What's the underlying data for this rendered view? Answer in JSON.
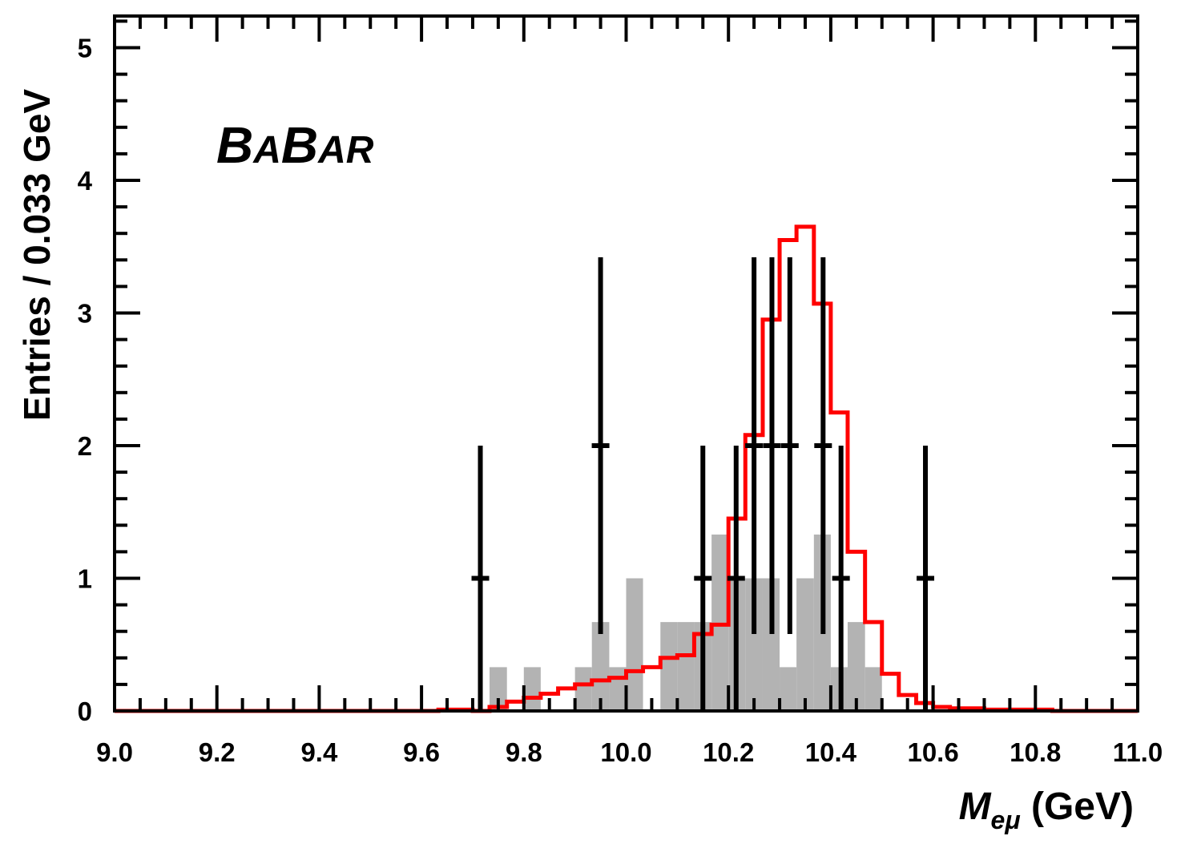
{
  "chart_data": {
    "type": "histogram",
    "experiment_label_parts": [
      "B",
      "A",
      "B",
      "AR"
    ],
    "xlabel_parts": [
      "M",
      "eμ",
      " (GeV)"
    ],
    "ylabel": "Entries / 0.033 GeV",
    "xlim": [
      9.0,
      11.0
    ],
    "ylim": [
      0,
      5.25
    ],
    "x_ticks": [
      "9.0",
      "9.2",
      "9.4",
      "9.6",
      "9.8",
      "10.0",
      "10.2",
      "10.4",
      "10.6",
      "10.8",
      "11.0"
    ],
    "y_ticks": [
      "0",
      "1",
      "2",
      "3",
      "4",
      "5"
    ],
    "colors": {
      "signal": "#ff0000",
      "background": "#b3b3b3",
      "data": "#000000"
    },
    "series": [
      {
        "kind": "data_points",
        "points": [
          {
            "x": 9.715,
            "y": 1,
            "err": 1
          },
          {
            "x": 9.95,
            "y": 2,
            "err": 1.42
          },
          {
            "x": 10.15,
            "y": 1,
            "err": 1
          },
          {
            "x": 10.215,
            "y": 1,
            "err": 1
          },
          {
            "x": 10.25,
            "y": 2,
            "err": 1.42
          },
          {
            "x": 10.285,
            "y": 2,
            "err": 1.42
          },
          {
            "x": 10.32,
            "y": 2,
            "err": 1.42
          },
          {
            "x": 10.385,
            "y": 2,
            "err": 1.42
          },
          {
            "x": 10.42,
            "y": 1,
            "err": 1
          },
          {
            "x": 10.585,
            "y": 1,
            "err": 1
          }
        ]
      },
      {
        "kind": "step_line",
        "bin_edges": [
          9.0,
          9.633,
          9.667,
          9.7,
          9.733,
          9.767,
          9.8,
          9.833,
          9.867,
          9.9,
          9.933,
          9.967,
          10.0,
          10.033,
          10.067,
          10.1,
          10.133,
          10.167,
          10.2,
          10.233,
          10.267,
          10.3,
          10.333,
          10.367,
          10.4,
          10.433,
          10.467,
          10.5,
          10.533,
          10.567,
          10.6,
          10.633,
          10.667,
          10.7,
          10.733,
          10.767,
          10.8,
          10.833,
          11.0
        ],
        "values": [
          0.0,
          0.01,
          0.01,
          0.0,
          0.03,
          0.07,
          0.1,
          0.13,
          0.17,
          0.2,
          0.23,
          0.25,
          0.3,
          0.33,
          0.4,
          0.42,
          0.58,
          0.65,
          1.45,
          2.08,
          2.95,
          3.55,
          3.65,
          3.07,
          2.25,
          1.2,
          0.67,
          0.28,
          0.12,
          0.06,
          0.03,
          0.02,
          0.02,
          0.01,
          0.01,
          0.01,
          0.01,
          0.0
        ]
      },
      {
        "kind": "filled_bars",
        "bins": [
          {
            "x0": 9.733,
            "x1": 9.767,
            "y": 0.33
          },
          {
            "x0": 9.8,
            "x1": 9.833,
            "y": 0.33
          },
          {
            "x0": 9.9,
            "x1": 9.933,
            "y": 0.33
          },
          {
            "x0": 9.933,
            "x1": 9.967,
            "y": 0.67
          },
          {
            "x0": 9.967,
            "x1": 10.0,
            "y": 0.33
          },
          {
            "x0": 10.0,
            "x1": 10.033,
            "y": 1.0
          },
          {
            "x0": 10.067,
            "x1": 10.1,
            "y": 0.67
          },
          {
            "x0": 10.1,
            "x1": 10.133,
            "y": 0.67
          },
          {
            "x0": 10.133,
            "x1": 10.167,
            "y": 0.67
          },
          {
            "x0": 10.167,
            "x1": 10.2,
            "y": 1.33
          },
          {
            "x0": 10.2,
            "x1": 10.233,
            "y": 1.0
          },
          {
            "x0": 10.233,
            "x1": 10.267,
            "y": 1.0
          },
          {
            "x0": 10.267,
            "x1": 10.3,
            "y": 1.0
          },
          {
            "x0": 10.3,
            "x1": 10.333,
            "y": 0.33
          },
          {
            "x0": 10.333,
            "x1": 10.367,
            "y": 1.0
          },
          {
            "x0": 10.367,
            "x1": 10.4,
            "y": 1.33
          },
          {
            "x0": 10.4,
            "x1": 10.433,
            "y": 0.33
          },
          {
            "x0": 10.433,
            "x1": 10.467,
            "y": 0.67
          },
          {
            "x0": 10.467,
            "x1": 10.5,
            "y": 0.33
          },
          {
            "x0": 10.5,
            "x1": 10.533,
            "y": 0.0
          }
        ]
      }
    ]
  }
}
